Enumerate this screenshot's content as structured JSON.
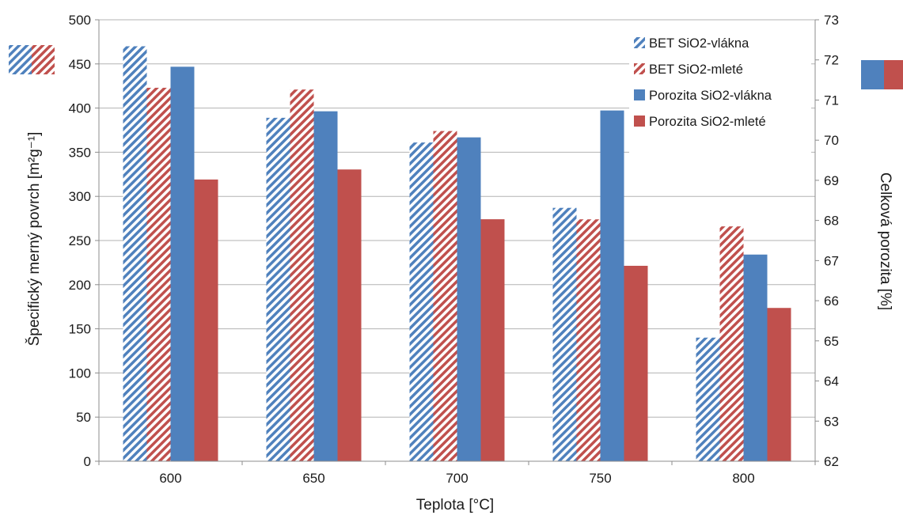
{
  "chart_data": {
    "type": "bar",
    "categories": [
      "600",
      "650",
      "700",
      "750",
      "800"
    ],
    "xlabel": "Teplota [°C]",
    "ylabel_left": "Špecifický merný povrch [m²g⁻¹]",
    "ylabel_right": "Celková porozita [%]",
    "ylim_left": [
      0,
      500
    ],
    "ylim_right": [
      62,
      73
    ],
    "yticks_left": [
      "0",
      "50",
      "100",
      "150",
      "200",
      "250",
      "300",
      "350",
      "400",
      "450",
      "500"
    ],
    "yticks_right": [
      "62",
      "63",
      "64",
      "65",
      "66",
      "67",
      "68",
      "69",
      "70",
      "71",
      "72",
      "73"
    ],
    "grid": "horizontal",
    "legend_position": "top-right",
    "series": [
      {
        "name": "BET SiO2-vlákna",
        "axis": "left",
        "style": "hatched",
        "color": "#4f81bd",
        "values": [
          470,
          389,
          361,
          287,
          140
        ]
      },
      {
        "name": "BET SiO2-mleté",
        "axis": "left",
        "style": "hatched",
        "color": "#c0504d",
        "values": [
          423,
          421,
          374,
          274,
          266
        ]
      },
      {
        "name": "Porozita SiO2-vlákna",
        "axis": "right",
        "style": "solid",
        "color": "#4f81bd",
        "values": [
          71.83,
          70.72,
          70.07,
          70.74,
          67.15
        ]
      },
      {
        "name": "Porozita SiO2-mleté",
        "axis": "right",
        "style": "solid",
        "color": "#c0504d",
        "values": [
          69.02,
          69.27,
          68.03,
          66.87,
          65.82
        ]
      }
    ]
  }
}
